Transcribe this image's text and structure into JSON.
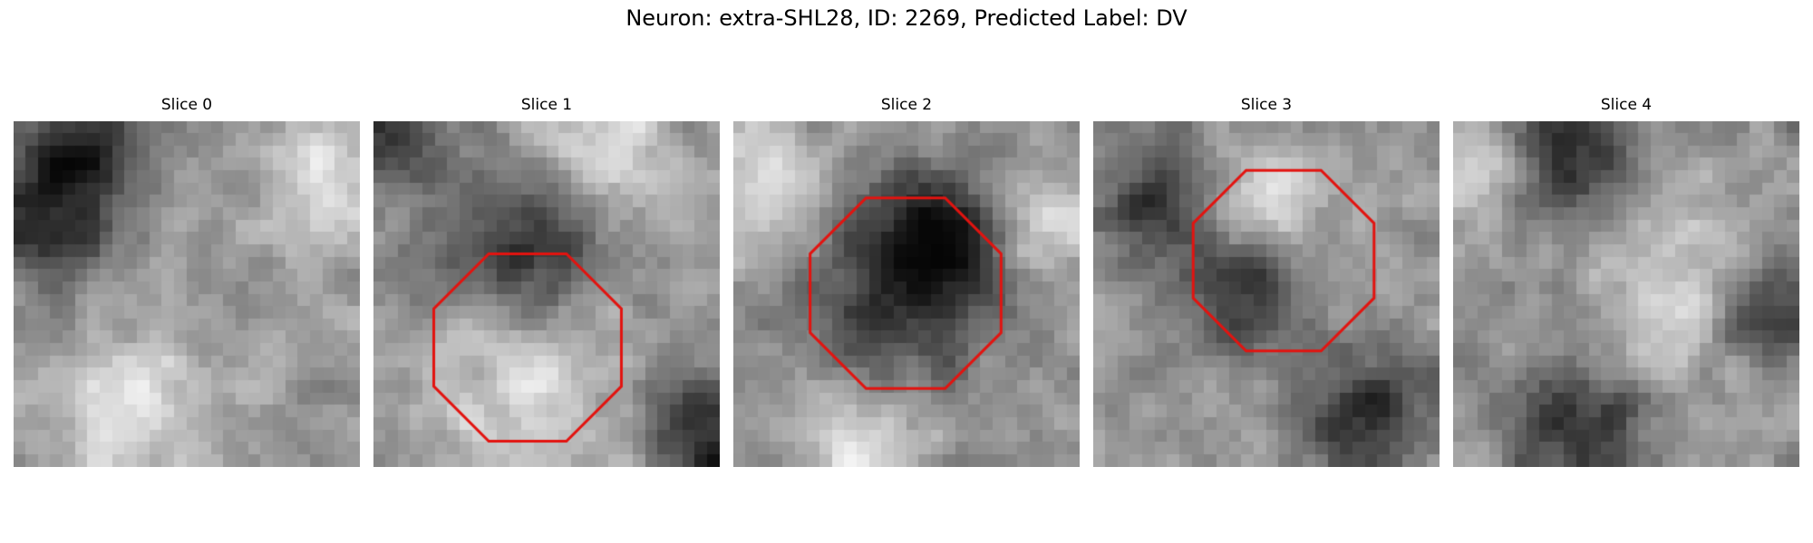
{
  "figure": {
    "title": "Neuron: extra-SHL28, ID: 2269, Predicted Label: DV"
  },
  "panels": [
    {
      "title": "Slice 0",
      "has_octagon": false,
      "seed": 17,
      "dark_spots": [
        [
          0.1,
          0.28,
          0.14
        ],
        [
          0.2,
          0.1,
          0.1
        ]
      ],
      "bright_spots": [
        [
          0.35,
          0.82,
          0.16
        ],
        [
          0.88,
          0.18,
          0.12
        ]
      ]
    },
    {
      "title": "Slice 1",
      "has_octagon": true,
      "seed": 29,
      "dark_spots": [
        [
          0.45,
          0.35,
          0.16
        ],
        [
          0.05,
          0.05,
          0.1
        ],
        [
          0.96,
          0.9,
          0.12
        ]
      ],
      "bright_spots": [
        [
          0.45,
          0.78,
          0.18
        ],
        [
          0.65,
          0.1,
          0.14
        ]
      ]
    },
    {
      "title": "Slice 2",
      "has_octagon": true,
      "seed": 41,
      "dark_spots": [
        [
          0.5,
          0.45,
          0.22
        ],
        [
          0.6,
          0.35,
          0.1
        ]
      ],
      "bright_spots": [
        [
          0.1,
          0.2,
          0.14
        ],
        [
          0.9,
          0.3,
          0.12
        ],
        [
          0.35,
          0.92,
          0.12
        ]
      ]
    },
    {
      "title": "Slice 3",
      "has_octagon": true,
      "seed": 53,
      "dark_spots": [
        [
          0.45,
          0.5,
          0.11
        ],
        [
          0.2,
          0.25,
          0.12
        ],
        [
          0.8,
          0.85,
          0.12
        ]
      ],
      "bright_spots": [
        [
          0.5,
          0.22,
          0.12
        ]
      ]
    },
    {
      "title": "Slice 4",
      "has_octagon": false,
      "seed": 67,
      "dark_spots": [
        [
          0.33,
          0.12,
          0.12
        ],
        [
          0.35,
          0.9,
          0.14
        ],
        [
          0.9,
          0.55,
          0.1
        ]
      ],
      "bright_spots": [
        [
          0.05,
          0.15,
          0.1
        ],
        [
          0.65,
          0.5,
          0.15
        ]
      ]
    }
  ],
  "colors": {
    "octagon": "#e3130f",
    "background": "#ffffff"
  }
}
